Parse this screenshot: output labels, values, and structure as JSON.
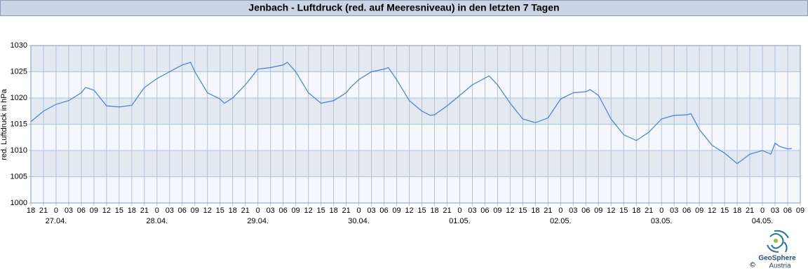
{
  "chart_data": {
    "type": "line",
    "title": "Jenbach - Luftdruck (red. auf Meeresniveau) in den letzten 7 Tagen",
    "y_label": "red. Luftdruck in hPa",
    "x": [
      0,
      3,
      6,
      9,
      12,
      13,
      15,
      18,
      21,
      24,
      27,
      30,
      33,
      36,
      38,
      39,
      42,
      45,
      46,
      48,
      51,
      54,
      57,
      60,
      61,
      63,
      66,
      69,
      72,
      75,
      76,
      78,
      81,
      84,
      85,
      87,
      90,
      93,
      95,
      96,
      99,
      102,
      105,
      108,
      109,
      111,
      114,
      117,
      120,
      123,
      126,
      129,
      132,
      133,
      135,
      138,
      141,
      144,
      147,
      150,
      153,
      156,
      157,
      159,
      162,
      165,
      168,
      171,
      174,
      176,
      177,
      178,
      180,
      181
    ],
    "values": [
      1015.5,
      1017.5,
      1018.8,
      1019.5,
      1021,
      1022,
      1021.5,
      1018.5,
      1018.3,
      1018.6,
      1022,
      1023.7,
      1025,
      1026.3,
      1026.8,
      1025,
      1021,
      1019.8,
      1019,
      1020,
      1022.5,
      1025.5,
      1025.8,
      1026.3,
      1026.8,
      1025,
      1021,
      1019,
      1019.5,
      1021,
      1022,
      1023.5,
      1025,
      1025.5,
      1025.8,
      1023.5,
      1019.5,
      1017.5,
      1016.7,
      1016.8,
      1018.5,
      1020.5,
      1022.5,
      1023.8,
      1024.2,
      1022.5,
      1019,
      1016,
      1015.3,
      1016.2,
      1019.8,
      1021,
      1021.2,
      1021.6,
      1020.5,
      1016,
      1013,
      1011.9,
      1013.5,
      1016,
      1016.7,
      1016.8,
      1017,
      1014,
      1011,
      1009.5,
      1007.5,
      1009.3,
      1010,
      1009.3,
      1011.4,
      1010.8,
      1010.3,
      1010.4
    ],
    "color": "#4a7fd4",
    "xlim": [
      0,
      183
    ],
    "xticks": [
      {
        "value": 0,
        "label": "18"
      },
      {
        "value": 3,
        "label": "21"
      },
      {
        "value": 6,
        "label": "0"
      },
      {
        "value": 9,
        "label": "03"
      },
      {
        "value": 12,
        "label": "06"
      },
      {
        "value": 15,
        "label": "09"
      },
      {
        "value": 18,
        "label": "12"
      },
      {
        "value": 21,
        "label": "15"
      },
      {
        "value": 24,
        "label": "18"
      },
      {
        "value": 27,
        "label": "21"
      },
      {
        "value": 30,
        "label": "0"
      },
      {
        "value": 33,
        "label": "03"
      },
      {
        "value": 36,
        "label": "06"
      },
      {
        "value": 39,
        "label": "09"
      },
      {
        "value": 42,
        "label": "12"
      },
      {
        "value": 45,
        "label": "15"
      },
      {
        "value": 48,
        "label": "18"
      },
      {
        "value": 51,
        "label": "21"
      },
      {
        "value": 54,
        "label": "0"
      },
      {
        "value": 57,
        "label": "03"
      },
      {
        "value": 60,
        "label": "06"
      },
      {
        "value": 63,
        "label": "09"
      },
      {
        "value": 66,
        "label": "12"
      },
      {
        "value": 69,
        "label": "15"
      },
      {
        "value": 72,
        "label": "18"
      },
      {
        "value": 75,
        "label": "21"
      },
      {
        "value": 78,
        "label": "0"
      },
      {
        "value": 81,
        "label": "03"
      },
      {
        "value": 84,
        "label": "06"
      },
      {
        "value": 87,
        "label": "09"
      },
      {
        "value": 90,
        "label": "12"
      },
      {
        "value": 93,
        "label": "15"
      },
      {
        "value": 96,
        "label": "18"
      },
      {
        "value": 99,
        "label": "21"
      },
      {
        "value": 102,
        "label": "0"
      },
      {
        "value": 105,
        "label": "03"
      },
      {
        "value": 108,
        "label": "06"
      },
      {
        "value": 111,
        "label": "09"
      },
      {
        "value": 114,
        "label": "12"
      },
      {
        "value": 117,
        "label": "15"
      },
      {
        "value": 120,
        "label": "18"
      },
      {
        "value": 123,
        "label": "21"
      },
      {
        "value": 126,
        "label": "0"
      },
      {
        "value": 129,
        "label": "03"
      },
      {
        "value": 132,
        "label": "06"
      },
      {
        "value": 135,
        "label": "09"
      },
      {
        "value": 138,
        "label": "12"
      },
      {
        "value": 141,
        "label": "15"
      },
      {
        "value": 144,
        "label": "18"
      },
      {
        "value": 147,
        "label": "21"
      },
      {
        "value": 150,
        "label": "0"
      },
      {
        "value": 153,
        "label": "03"
      },
      {
        "value": 156,
        "label": "06"
      },
      {
        "value": 159,
        "label": "09"
      },
      {
        "value": 162,
        "label": "12"
      },
      {
        "value": 165,
        "label": "15"
      },
      {
        "value": 168,
        "label": "18"
      },
      {
        "value": 171,
        "label": "21"
      },
      {
        "value": 174,
        "label": "0"
      },
      {
        "value": 177,
        "label": "03"
      },
      {
        "value": 180,
        "label": "06"
      },
      {
        "value": 183,
        "label": "09"
      }
    ],
    "xdates": [
      {
        "value": 6,
        "label": "27.04."
      },
      {
        "value": 30,
        "label": "28.04."
      },
      {
        "value": 54,
        "label": "29.04."
      },
      {
        "value": 78,
        "label": "30.04."
      },
      {
        "value": 102,
        "label": "01.05."
      },
      {
        "value": 126,
        "label": "02.05."
      },
      {
        "value": 150,
        "label": "03.05."
      },
      {
        "value": 174,
        "label": "04.05."
      }
    ],
    "ylim": [
      1000,
      1030
    ],
    "yticks": [
      1000,
      1005,
      1010,
      1015,
      1020,
      1025,
      1030
    ],
    "grid": true
  },
  "logo": {
    "name": "GeoSphere",
    "subname": "Austria",
    "copyright": "©"
  }
}
